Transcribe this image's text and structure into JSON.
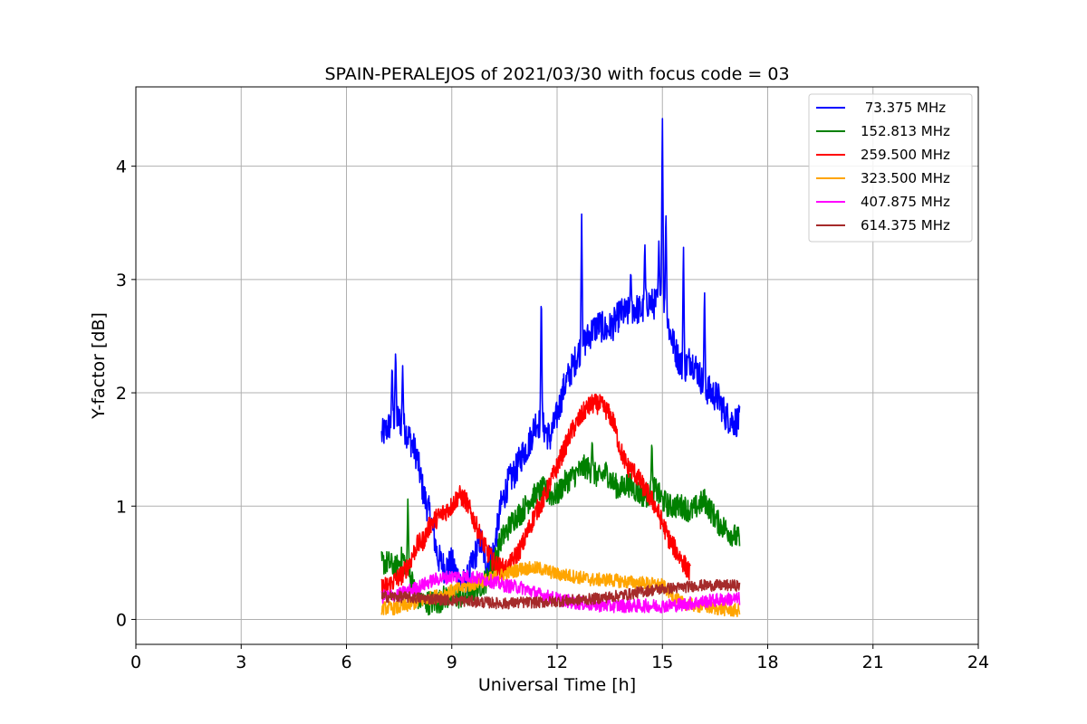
{
  "chart_data": {
    "type": "line",
    "title": "SPAIN-PERALEJOS of 2021/03/30 with focus code = 03",
    "xlabel": "Universal Time [h]",
    "ylabel": "Y-factor [dB]",
    "xlim": [
      0,
      24
    ],
    "ylim": [
      -0.22,
      4.7
    ],
    "xticks": [
      0,
      3,
      6,
      9,
      12,
      15,
      18,
      21,
      24
    ],
    "yticks": [
      0,
      1,
      2,
      3,
      4
    ],
    "grid": true,
    "legend_position": "top-right",
    "series": [
      {
        "name": " 73.375 MHz",
        "color": "#0000ff",
        "x": [
          7.0,
          7.2,
          7.4,
          7.6,
          7.8,
          8.0,
          8.2,
          8.4,
          8.6,
          8.8,
          9.0,
          9.2,
          9.4,
          9.6,
          9.8,
          10.0,
          10.2,
          10.4,
          10.6,
          10.8,
          11.0,
          11.2,
          11.4,
          11.6,
          11.8,
          12.0,
          12.2,
          12.4,
          12.6,
          12.8,
          13.0,
          13.2,
          13.4,
          13.6,
          13.8,
          14.0,
          14.2,
          14.4,
          14.6,
          14.8,
          15.0,
          15.2,
          15.4,
          15.6,
          15.8,
          16.0,
          16.2,
          16.4,
          16.6,
          16.8,
          17.0,
          17.2
        ],
        "y": [
          1.62,
          1.7,
          1.8,
          1.72,
          1.6,
          1.45,
          1.1,
          0.9,
          0.55,
          0.45,
          0.5,
          0.35,
          0.3,
          0.5,
          0.7,
          0.5,
          0.6,
          1.0,
          1.2,
          1.3,
          1.45,
          1.55,
          1.75,
          1.7,
          1.6,
          1.8,
          2.05,
          2.2,
          2.35,
          2.45,
          2.55,
          2.6,
          2.55,
          2.6,
          2.7,
          2.7,
          2.75,
          2.72,
          2.8,
          2.78,
          2.9,
          2.55,
          2.35,
          2.2,
          2.3,
          2.2,
          2.05,
          2.0,
          1.95,
          1.8,
          1.75,
          1.75
        ],
        "spikes": [
          [
            7.3,
            2.28
          ],
          [
            7.4,
            2.4
          ],
          [
            7.6,
            2.25
          ],
          [
            11.55,
            2.95
          ],
          [
            12.7,
            3.6
          ],
          [
            14.1,
            3.1
          ],
          [
            14.5,
            3.35
          ],
          [
            14.9,
            3.35
          ],
          [
            15.0,
            4.48
          ],
          [
            15.1,
            3.65
          ],
          [
            15.6,
            3.35
          ],
          [
            16.2,
            2.95
          ]
        ],
        "noise": 0.14
      },
      {
        "name": "152.813 MHz",
        "color": "#008000",
        "x": [
          7.0,
          7.2,
          7.4,
          7.6,
          7.8,
          8.0,
          8.2,
          8.4,
          8.6,
          8.8,
          9.0,
          9.2,
          9.4,
          9.6,
          9.8,
          10.0,
          10.2,
          10.4,
          10.6,
          10.8,
          11.0,
          11.2,
          11.4,
          11.6,
          11.8,
          12.0,
          12.2,
          12.4,
          12.6,
          12.8,
          13.0,
          13.2,
          13.4,
          13.6,
          13.8,
          14.0,
          14.2,
          14.4,
          14.6,
          14.8,
          15.0,
          15.2,
          15.4,
          15.6,
          15.8,
          16.0,
          16.2,
          16.4,
          16.6,
          16.8,
          17.0,
          17.2
        ],
        "y": [
          0.5,
          0.5,
          0.45,
          0.55,
          0.4,
          0.2,
          0.15,
          0.15,
          0.15,
          0.2,
          0.2,
          0.2,
          0.2,
          0.25,
          0.3,
          0.35,
          0.5,
          0.7,
          0.8,
          0.9,
          0.95,
          1.05,
          1.1,
          1.15,
          1.1,
          1.1,
          1.2,
          1.25,
          1.3,
          1.35,
          1.3,
          1.25,
          1.3,
          1.2,
          1.15,
          1.2,
          1.15,
          1.1,
          1.1,
          1.15,
          1.05,
          1.0,
          1.0,
          1.0,
          0.95,
          1.0,
          1.05,
          0.95,
          0.85,
          0.8,
          0.75,
          0.7
        ],
        "spikes": [
          [
            7.75,
            1.1
          ],
          [
            13.0,
            1.6
          ],
          [
            14.7,
            1.6
          ]
        ],
        "noise": 0.11
      },
      {
        "name": "259.500 MHz",
        "color": "#ff0000",
        "x": [
          7.0,
          7.2,
          7.4,
          7.6,
          7.8,
          8.0,
          8.2,
          8.4,
          8.6,
          8.8,
          9.0,
          9.2,
          9.4,
          9.6,
          9.8,
          10.0,
          10.2,
          10.4,
          10.6,
          10.8,
          11.0,
          11.2,
          11.4,
          11.6,
          11.8,
          12.0,
          12.2,
          12.4,
          12.6,
          12.8,
          13.0,
          13.2,
          13.4,
          13.6,
          13.8,
          14.0,
          14.2,
          14.4,
          14.6,
          14.8,
          15.0,
          15.2,
          15.4,
          15.6,
          15.8
        ],
        "y": [
          0.28,
          0.3,
          0.35,
          0.4,
          0.5,
          0.65,
          0.7,
          0.85,
          0.9,
          0.95,
          1.0,
          1.1,
          1.05,
          0.9,
          0.75,
          0.6,
          0.5,
          0.45,
          0.45,
          0.55,
          0.65,
          0.8,
          0.95,
          1.05,
          1.2,
          1.35,
          1.5,
          1.65,
          1.75,
          1.85,
          1.9,
          1.9,
          1.85,
          1.75,
          1.5,
          1.35,
          1.3,
          1.2,
          1.1,
          1.0,
          0.85,
          0.7,
          0.6,
          0.5,
          0.4
        ],
        "spikes": [],
        "noise": 0.09
      },
      {
        "name": "323.500 MHz",
        "color": "#ffa500",
        "x": [
          7.0,
          7.5,
          8.0,
          8.5,
          9.0,
          9.5,
          10.0,
          10.5,
          11.0,
          11.5,
          12.0,
          12.5,
          13.0,
          13.5,
          14.0,
          14.5,
          15.0,
          15.5,
          16.0,
          16.5,
          17.0,
          17.2
        ],
        "y": [
          0.1,
          0.1,
          0.15,
          0.2,
          0.25,
          0.3,
          0.35,
          0.4,
          0.45,
          0.45,
          0.4,
          0.38,
          0.35,
          0.35,
          0.33,
          0.32,
          0.3,
          0.15,
          0.12,
          0.1,
          0.08,
          0.08
        ],
        "spikes": [],
        "noise": 0.06
      },
      {
        "name": "407.875 MHz",
        "color": "#ff00ff",
        "x": [
          7.0,
          7.5,
          8.0,
          8.5,
          9.0,
          9.5,
          10.0,
          10.5,
          11.0,
          11.5,
          12.0,
          12.5,
          13.0,
          13.5,
          14.0,
          14.5,
          15.0,
          15.5,
          16.0,
          16.5,
          17.0,
          17.2
        ],
        "y": [
          0.2,
          0.22,
          0.28,
          0.35,
          0.38,
          0.38,
          0.35,
          0.3,
          0.28,
          0.22,
          0.18,
          0.15,
          0.13,
          0.12,
          0.12,
          0.12,
          0.12,
          0.13,
          0.15,
          0.17,
          0.18,
          0.18
        ],
        "spikes": [],
        "noise": 0.06
      },
      {
        "name": "614.375 MHz",
        "color": "#a52a2a",
        "x": [
          7.0,
          7.5,
          8.0,
          8.5,
          9.0,
          9.5,
          10.0,
          10.5,
          11.0,
          11.5,
          12.0,
          12.5,
          13.0,
          13.5,
          14.0,
          14.5,
          15.0,
          15.5,
          16.0,
          16.5,
          17.0,
          17.2
        ],
        "y": [
          0.2,
          0.2,
          0.19,
          0.18,
          0.17,
          0.16,
          0.15,
          0.14,
          0.15,
          0.15,
          0.16,
          0.17,
          0.18,
          0.2,
          0.22,
          0.25,
          0.27,
          0.28,
          0.3,
          0.3,
          0.3,
          0.3
        ],
        "spikes": [],
        "noise": 0.05
      }
    ]
  }
}
